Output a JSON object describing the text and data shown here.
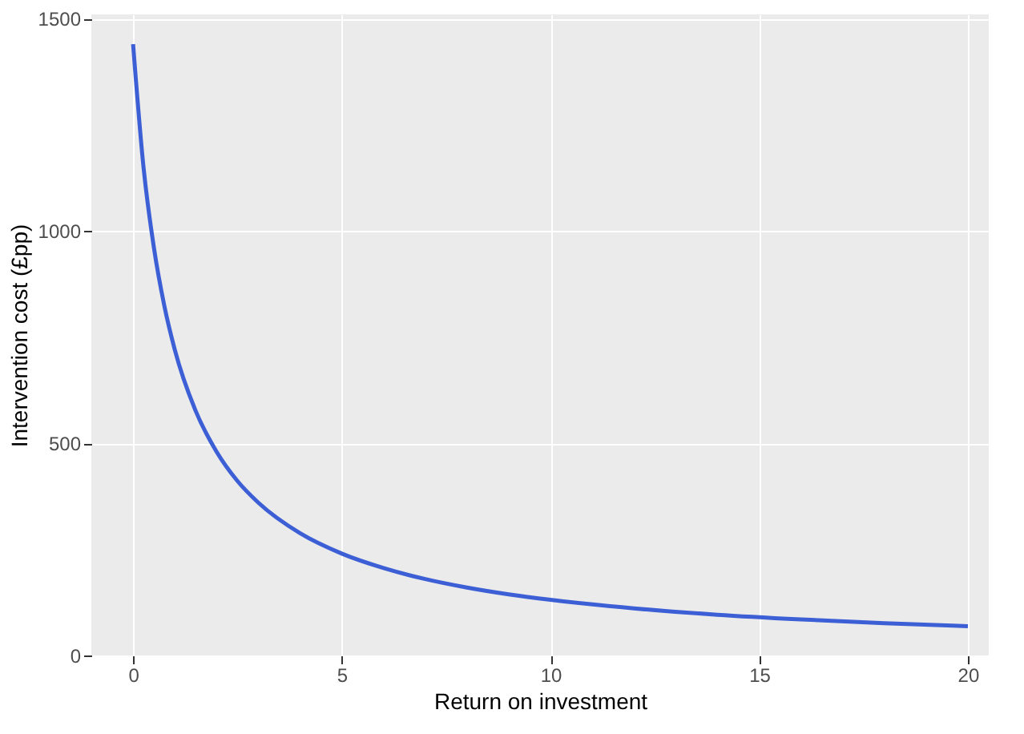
{
  "chart_data": {
    "type": "line",
    "xlabel": "Return on investment",
    "ylabel": "Intervention cost (£pp)",
    "x": [
      0,
      0.25,
      0.5,
      0.75,
      1,
      1.5,
      2,
      2.5,
      3,
      4,
      5,
      6,
      7,
      8,
      9,
      10,
      12,
      14,
      16,
      18,
      20
    ],
    "series": [
      {
        "color": "#3d5fd6",
        "values": [
          1440,
          1150,
          960,
          823,
          720,
          576,
          480,
          411,
          360,
          288,
          240,
          206,
          180,
          160,
          144,
          131,
          111,
          96,
          85,
          76,
          69
        ]
      }
    ],
    "xlim": [
      -1,
      20.5
    ],
    "ylim": [
      0,
      1510
    ],
    "xticks": [
      0,
      5,
      10,
      15,
      20
    ],
    "yticks": [
      0,
      500,
      1000,
      1500
    ],
    "grid": true,
    "line_style": "solid",
    "marker": "none"
  }
}
